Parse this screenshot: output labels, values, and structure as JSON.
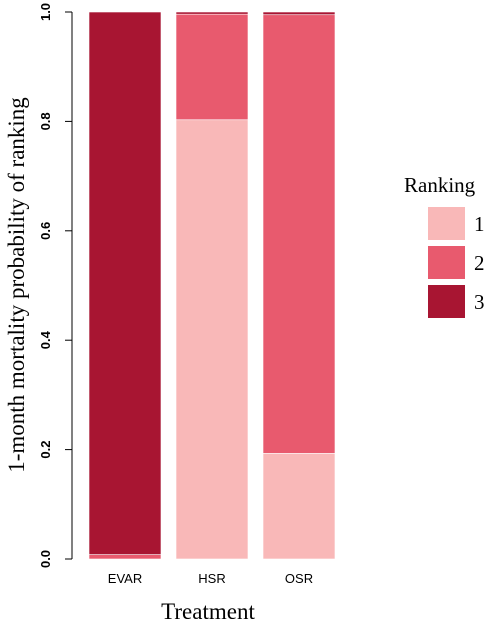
{
  "chart_data": {
    "type": "bar",
    "stacked": true,
    "categories": [
      "EVAR",
      "HSR",
      "OSR"
    ],
    "series": [
      {
        "name": "1",
        "color": "#f9b8b8",
        "values": [
          0.0,
          0.803,
          0.193
        ]
      },
      {
        "name": "2",
        "color": "#e85a6e",
        "values": [
          0.008,
          0.193,
          0.802
        ]
      },
      {
        "name": "3",
        "color": "#a81532",
        "values": [
          0.992,
          0.004,
          0.005
        ]
      }
    ],
    "xlabel": "Treatment",
    "ylabel": "1-month mortality probability of ranking",
    "ylim": [
      0,
      1
    ],
    "yticks": [
      "0.0",
      "0.2",
      "0.4",
      "0.6",
      "0.8",
      "1.0"
    ],
    "legend": {
      "title": "Ranking",
      "placement": "right"
    },
    "grid": false
  }
}
